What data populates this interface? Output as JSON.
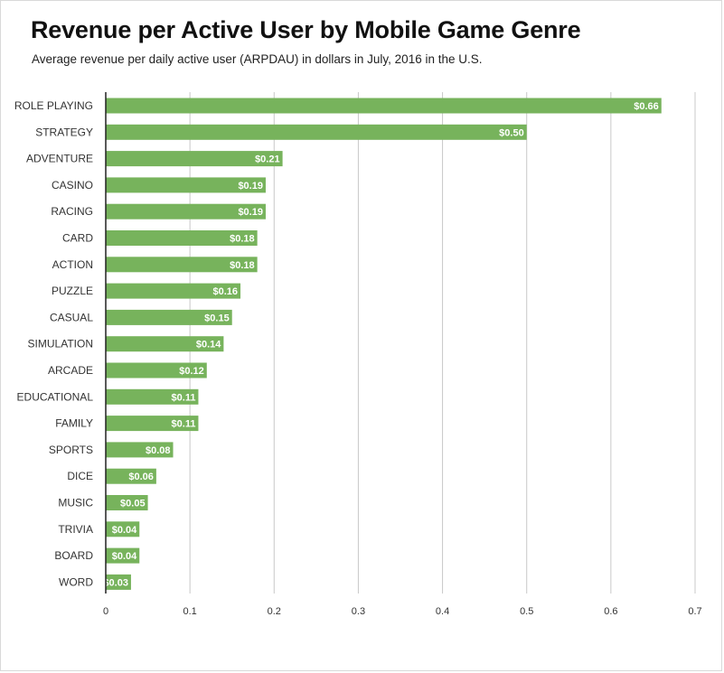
{
  "chart_data": {
    "type": "bar",
    "orientation": "horizontal",
    "title": "Revenue per Active User by Mobile Game Genre",
    "subtitle": "Average revenue per daily active user (ARPDAU) in dollars in July, 2016 in the U.S.",
    "xlabel": "",
    "ylabel": "",
    "xlim": [
      0,
      0.7
    ],
    "x_ticks": [
      "0",
      "0.1",
      "0.2",
      "0.3",
      "0.4",
      "0.5",
      "0.6",
      "0.7"
    ],
    "grid": true,
    "categories": [
      "ROLE PLAYING",
      "STRATEGY",
      "ADVENTURE",
      "CASINO",
      "RACING",
      "CARD",
      "ACTION",
      "PUZZLE",
      "CASUAL",
      "SIMULATION",
      "ARCADE",
      "EDUCATIONAL",
      "FAMILY",
      "SPORTS",
      "DICE",
      "MUSIC",
      "TRIVIA",
      "BOARD",
      "WORD"
    ],
    "values": [
      0.66,
      0.5,
      0.21,
      0.19,
      0.19,
      0.18,
      0.18,
      0.16,
      0.15,
      0.14,
      0.12,
      0.11,
      0.11,
      0.08,
      0.06,
      0.05,
      0.04,
      0.04,
      0.03
    ],
    "value_labels": [
      "$0.66",
      "$0.50",
      "$0.21",
      "$0.19",
      "$0.19",
      "$0.18",
      "$0.18",
      "$0.16",
      "$0.15",
      "$0.14",
      "$0.12",
      "$0.11",
      "$0.11",
      "$0.08",
      "$0.06",
      "$0.05",
      "$0.04",
      "$0.04",
      "$0.03"
    ],
    "bar_color": "#77b35c",
    "axis_color": "#222222",
    "grid_color": "#c8c8c8"
  }
}
